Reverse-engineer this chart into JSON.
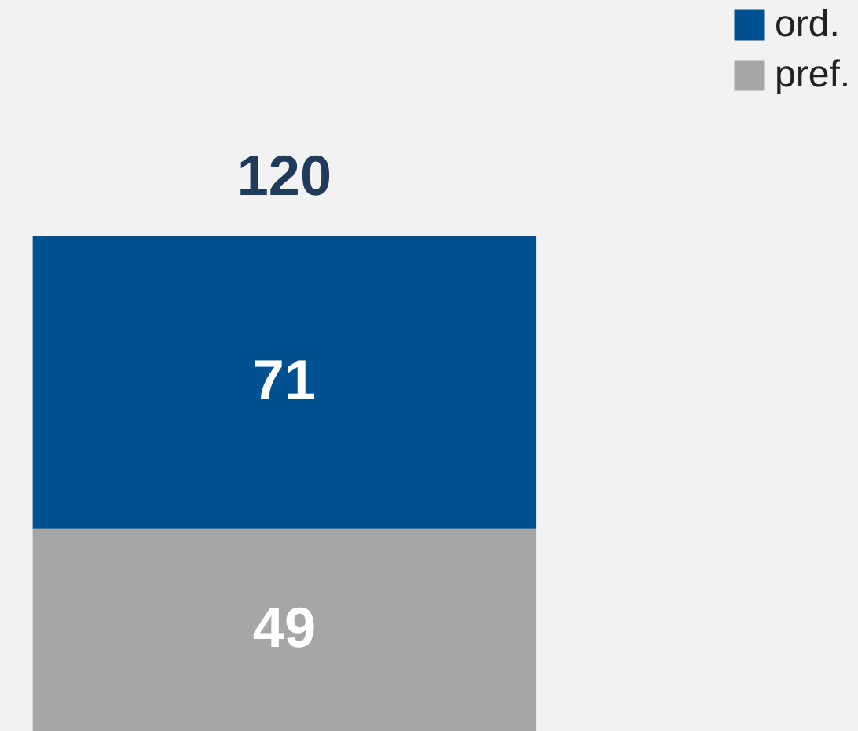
{
  "chart_data": {
    "type": "bar",
    "stacked": true,
    "categories": [
      null
    ],
    "series": [
      {
        "name": "pref.",
        "color": "#a6a6a6",
        "values": [
          49
        ]
      },
      {
        "name": "ord.",
        "color": "#005192",
        "values": [
          71
        ]
      }
    ],
    "data_labels": true,
    "totals": [
      "120"
    ],
    "legend": "top right"
  }
}
